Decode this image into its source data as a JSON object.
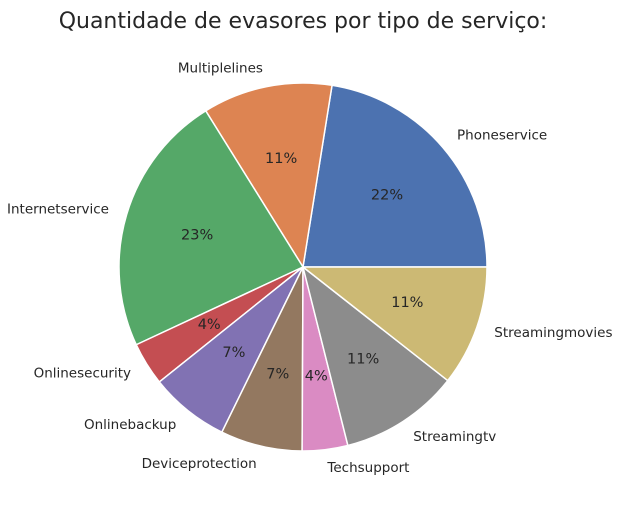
{
  "chart_data": {
    "type": "pie",
    "title": "Quantidade de evasores por tipo de serviço:",
    "categories": [
      "Phoneservice",
      "Multiplelines",
      "Internetservice",
      "Onlinesecurity",
      "Onlinebackup",
      "Deviceprotection",
      "Techsupport",
      "Streamingtv",
      "Streamingmovies"
    ],
    "values": [
      22.5,
      11.4,
      23.1,
      3.8,
      7.0,
      7.2,
      4.0,
      10.5,
      10.6
    ],
    "percent_labels": [
      "22%",
      "11%",
      "23%",
      "4%",
      "7%",
      "7%",
      "4%",
      "11%",
      "11%"
    ],
    "colors": [
      "#4c72b0",
      "#dd8452",
      "#55a868",
      "#c44e52",
      "#8172b3",
      "#937860",
      "#da8bc3",
      "#8c8c8c",
      "#ccb974"
    ],
    "start_angle": 0,
    "direction": "counterclockwise",
    "legend": "none"
  }
}
